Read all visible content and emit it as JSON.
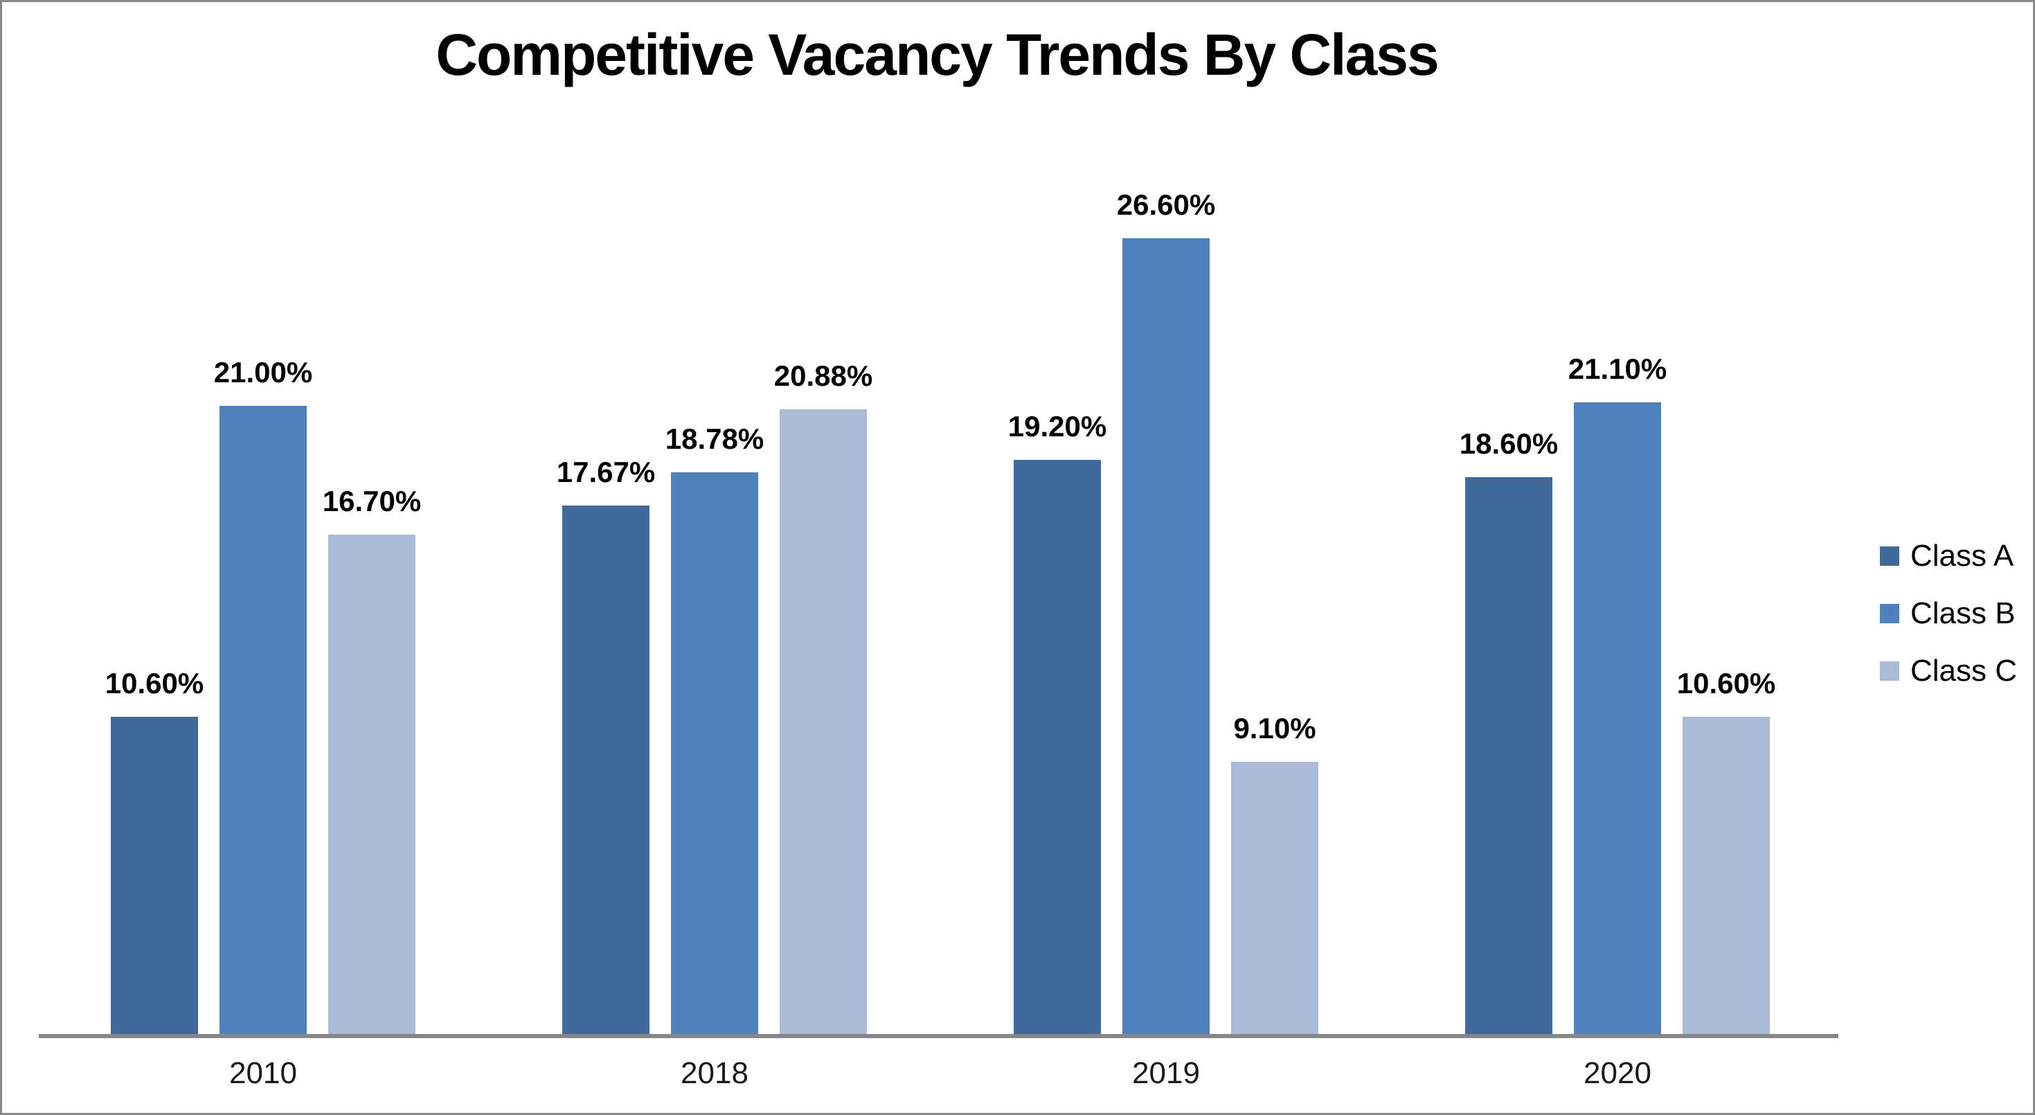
{
  "chart_data": {
    "type": "bar",
    "title": "Competitive Vacancy Trends By Class",
    "categories": [
      "2010",
      "2018",
      "2019",
      "2020"
    ],
    "series": [
      {
        "name": "Class A",
        "color": "#40699C",
        "values": [
          10.6,
          17.67,
          19.2,
          18.6
        ],
        "labels": [
          "10.60%",
          "17.67%",
          "19.20%",
          "18.60%"
        ]
      },
      {
        "name": "Class B",
        "color": "#4F81BD",
        "values": [
          21.0,
          18.78,
          26.6,
          21.1
        ],
        "labels": [
          "21.00%",
          "18.78%",
          "26.60%",
          "21.10%"
        ]
      },
      {
        "name": "Class C",
        "color": "#ABBAD9",
        "values": [
          16.7,
          20.88,
          9.1,
          10.6
        ],
        "labels": [
          "16.70%",
          "20.88%",
          "9.10%",
          "10.60%"
        ]
      }
    ],
    "xlabel": "",
    "ylabel": "",
    "y_axis_visible": false,
    "grid": false,
    "data_labels": true,
    "legend_position": "right",
    "axis_line_color": "#868686",
    "frame_border_color": "#878787",
    "bar_label_format": "percent_2dp"
  }
}
